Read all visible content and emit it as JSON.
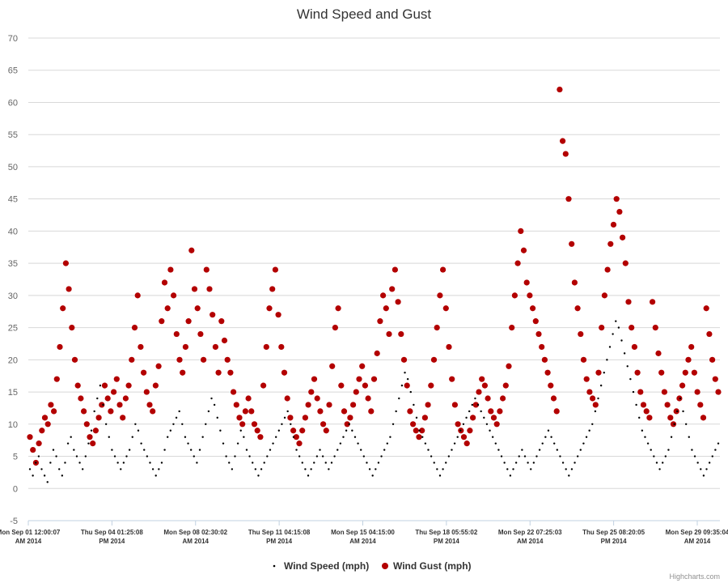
{
  "chart_data": {
    "type": "scatter",
    "title": "Wind Speed and Gust",
    "xlabel": "",
    "ylabel": "",
    "ylim": [
      -5,
      70
    ],
    "y_ticks": [
      -5,
      0,
      5,
      10,
      15,
      20,
      25,
      30,
      35,
      40,
      45,
      50,
      55,
      60,
      65,
      70
    ],
    "x_tick_labels": [
      {
        "line1": "Mon Sep 01 12:00:07",
        "line2": "AM 2014"
      },
      {
        "line1": "Thu Sep 04 01:25:08",
        "line2": "PM 2014"
      },
      {
        "line1": "Mon Sep 08 02:30:02",
        "line2": "AM 2014"
      },
      {
        "line1": "Thu Sep 11 04:15:08",
        "line2": "PM 2014"
      },
      {
        "line1": "Mon Sep 15 04:15:00",
        "line2": "AM 2014"
      },
      {
        "line1": "Thu Sep 18 05:55:02",
        "line2": "PM 2014"
      },
      {
        "line1": "Mon Sep 22 07:25:03",
        "line2": "AM 2014"
      },
      {
        "line1": "Thu Sep 25 08:20:05",
        "line2": "PM 2014"
      },
      {
        "line1": "Mon Sep 29 09:35:04",
        "line2": "AM 2014"
      }
    ],
    "grid": true,
    "legend_position": "bottom-center",
    "colors": {
      "wind_speed": "#000000",
      "wind_gust": "#b30000",
      "grid": "#d8d8d8"
    },
    "series": [
      {
        "name": "Wind Speed (mph)",
        "marker": "small-dot",
        "values": [
          3,
          2,
          4,
          5,
          3,
          2,
          1,
          4,
          6,
          5,
          3,
          2,
          4,
          7,
          8,
          6,
          5,
          4,
          3,
          5,
          7,
          9,
          12,
          14,
          16,
          13,
          10,
          8,
          6,
          5,
          4,
          3,
          4,
          5,
          6,
          8,
          10,
          9,
          7,
          6,
          5,
          4,
          3,
          2,
          3,
          4,
          6,
          8,
          9,
          10,
          11,
          12,
          10,
          8,
          7,
          6,
          5,
          4,
          6,
          8,
          10,
          12,
          14,
          13,
          11,
          9,
          7,
          5,
          4,
          3,
          5,
          7,
          9,
          8,
          6,
          5,
          4,
          3,
          2,
          3,
          4,
          5,
          6,
          7,
          8,
          9,
          10,
          11,
          12,
          10,
          8,
          6,
          5,
          4,
          3,
          2,
          3,
          4,
          5,
          6,
          5,
          4,
          3,
          4,
          5,
          6,
          7,
          8,
          9,
          10,
          9,
          8,
          7,
          6,
          5,
          4,
          3,
          2,
          3,
          4,
          5,
          6,
          7,
          8,
          10,
          12,
          14,
          16,
          18,
          17,
          15,
          13,
          11,
          9,
          8,
          7,
          6,
          5,
          4,
          3,
          2,
          3,
          4,
          5,
          6,
          7,
          8,
          9,
          10,
          11,
          12,
          13,
          14,
          13,
          12,
          11,
          10,
          9,
          8,
          7,
          6,
          5,
          4,
          3,
          2,
          3,
          4,
          5,
          6,
          5,
          4,
          3,
          4,
          5,
          6,
          7,
          8,
          9,
          8,
          7,
          6,
          5,
          4,
          3,
          2,
          3,
          4,
          5,
          6,
          7,
          8,
          9,
          10,
          12,
          14,
          16,
          18,
          20,
          22,
          24,
          26,
          25,
          23,
          21,
          19,
          17,
          15,
          13,
          11,
          9,
          8,
          7,
          6,
          5,
          4,
          3,
          4,
          5,
          6,
          8,
          10,
          12,
          14,
          12,
          10,
          8,
          6,
          5,
          4,
          3,
          2,
          3,
          4,
          5,
          6,
          7
        ]
      },
      {
        "name": "Wind Gust (mph)",
        "marker": "circle",
        "values": [
          8,
          6,
          4,
          7,
          9,
          11,
          10,
          13,
          12,
          17,
          22,
          28,
          35,
          31,
          25,
          20,
          16,
          14,
          12,
          10,
          8,
          7,
          9,
          11,
          13,
          16,
          14,
          12,
          15,
          17,
          13,
          11,
          14,
          16,
          20,
          25,
          30,
          22,
          18,
          15,
          13,
          12,
          16,
          19,
          26,
          32,
          28,
          34,
          30,
          24,
          20,
          18,
          22,
          26,
          37,
          31,
          28,
          24,
          20,
          34,
          31,
          27,
          22,
          18,
          26,
          23,
          20,
          18,
          15,
          13,
          11,
          10,
          12,
          14,
          12,
          10,
          9,
          8,
          16,
          22,
          28,
          31,
          34,
          27,
          22,
          18,
          14,
          11,
          9,
          8,
          7,
          9,
          11,
          13,
          15,
          17,
          14,
          12,
          10,
          9,
          13,
          19,
          25,
          28,
          16,
          12,
          10,
          11,
          13,
          15,
          17,
          19,
          16,
          14,
          12,
          17,
          21,
          26,
          30,
          28,
          24,
          31,
          34,
          29,
          24,
          20,
          16,
          12,
          10,
          9,
          8,
          9,
          11,
          13,
          16,
          20,
          25,
          30,
          34,
          28,
          22,
          17,
          13,
          10,
          9,
          8,
          7,
          9,
          11,
          13,
          15,
          17,
          16,
          14,
          12,
          11,
          10,
          12,
          14,
          16,
          19,
          25,
          30,
          35,
          40,
          37,
          32,
          30,
          28,
          26,
          24,
          22,
          20,
          18,
          16,
          14,
          12,
          62,
          54,
          52,
          45,
          38,
          32,
          28,
          24,
          20,
          17,
          15,
          14,
          13,
          18,
          25,
          30,
          34,
          38,
          41,
          45,
          43,
          39,
          35,
          29,
          25,
          22,
          18,
          15,
          13,
          12,
          11,
          29,
          25,
          21,
          18,
          15,
          13,
          11,
          10,
          12,
          14,
          16,
          18,
          20,
          22,
          18,
          15,
          13,
          11,
          28,
          24,
          20,
          17,
          15
        ]
      }
    ]
  },
  "credits": "Highcharts.com"
}
